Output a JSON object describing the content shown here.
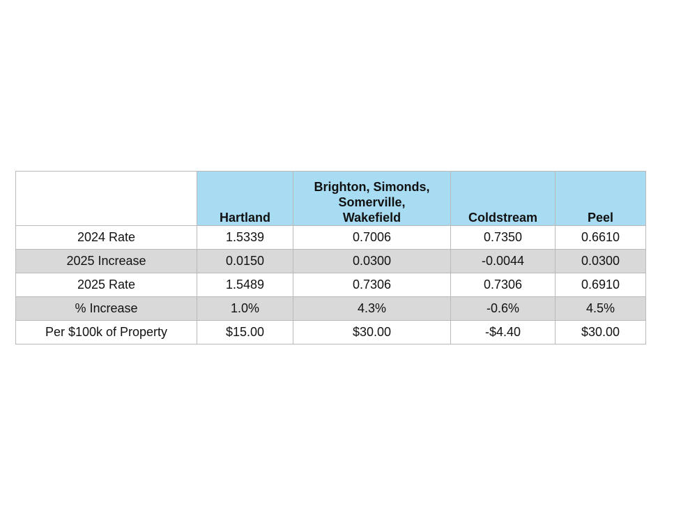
{
  "table": {
    "columns": [
      "Hartland",
      "Brighton, Simonds, Somerville, Wakefield",
      "Coldstream",
      "Peel"
    ],
    "column_header_lines": [
      [
        "Hartland"
      ],
      [
        "Brighton, Simonds,",
        "Somerville,",
        "Wakefield"
      ],
      [
        "Coldstream"
      ],
      [
        "Peel"
      ]
    ],
    "rows": [
      {
        "label": "2024 Rate",
        "values": [
          "1.5339",
          "0.7006",
          "0.7350",
          "0.6610"
        ]
      },
      {
        "label": "2025 Increase",
        "values": [
          "0.0150",
          "0.0300",
          "-0.0044",
          "0.0300"
        ]
      },
      {
        "label": "2025 Rate",
        "values": [
          "1.5489",
          "0.7306",
          "0.7306",
          "0.6910"
        ]
      },
      {
        "label": "% Increase",
        "values": [
          "1.0%",
          "4.3%",
          "-0.6%",
          "4.5%"
        ]
      },
      {
        "label": "Per $100k of Property",
        "values": [
          "$15.00",
          "$30.00",
          "-$4.40",
          "$30.00"
        ]
      }
    ]
  },
  "colors": {
    "header_fill": "#a8dcf3",
    "stripe_fill": "#d9d9d9",
    "border": "#b9b9b9"
  }
}
